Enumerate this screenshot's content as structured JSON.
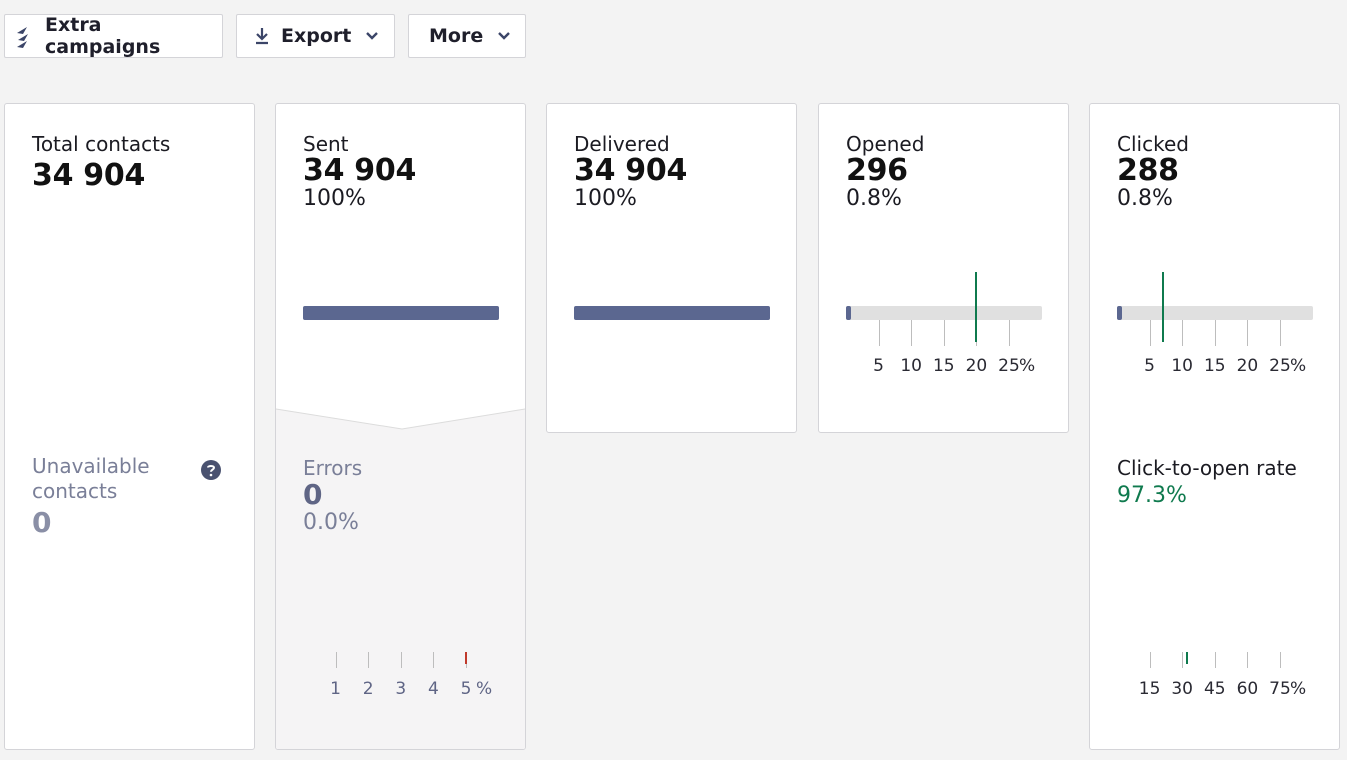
{
  "toolbar": {
    "extra_campaigns": "Extra campaigns",
    "export": "Export",
    "more": "More"
  },
  "cards": {
    "total": {
      "label": "Total contacts",
      "value": "34 904"
    },
    "unavailable": {
      "label_line1": "Unavailable",
      "label_line2": "contacts",
      "value": "0"
    },
    "sent": {
      "label": "Sent",
      "value": "34 904",
      "percent": "100%",
      "rate": 1.0
    },
    "errors": {
      "label": "Errors",
      "value": "0",
      "percent": "0.0%",
      "scale_ticks": [
        "1",
        "2",
        "3",
        "4",
        "5"
      ],
      "unit": "%",
      "benchmark": 5
    },
    "delivered": {
      "label": "Delivered",
      "value": "34 904",
      "percent": "100%",
      "rate": 1.0
    },
    "opened": {
      "label": "Opened",
      "value": "296",
      "percent": "0.8%",
      "rate": 0.008,
      "scale_ticks": [
        "5",
        "10",
        "15",
        "20",
        "25"
      ],
      "unit": "%",
      "benchmark": 20
    },
    "clicked": {
      "label": "Clicked",
      "value": "288",
      "percent": "0.8%",
      "rate": 0.008,
      "scale_ticks": [
        "5",
        "10",
        "15",
        "20",
        "25"
      ],
      "unit": "%",
      "benchmark": 7
    },
    "cto": {
      "label": "Click-to-open rate",
      "value": "97.3%",
      "scale_ticks": [
        "15",
        "30",
        "45",
        "60",
        "75"
      ],
      "unit": "%",
      "benchmark": 32
    }
  },
  "colors": {
    "bar_fill": "#5b6790",
    "benchmark_marker": "#0f7a4e",
    "error_marker": "#c0392b",
    "cto_value": "#0f7a4e"
  }
}
